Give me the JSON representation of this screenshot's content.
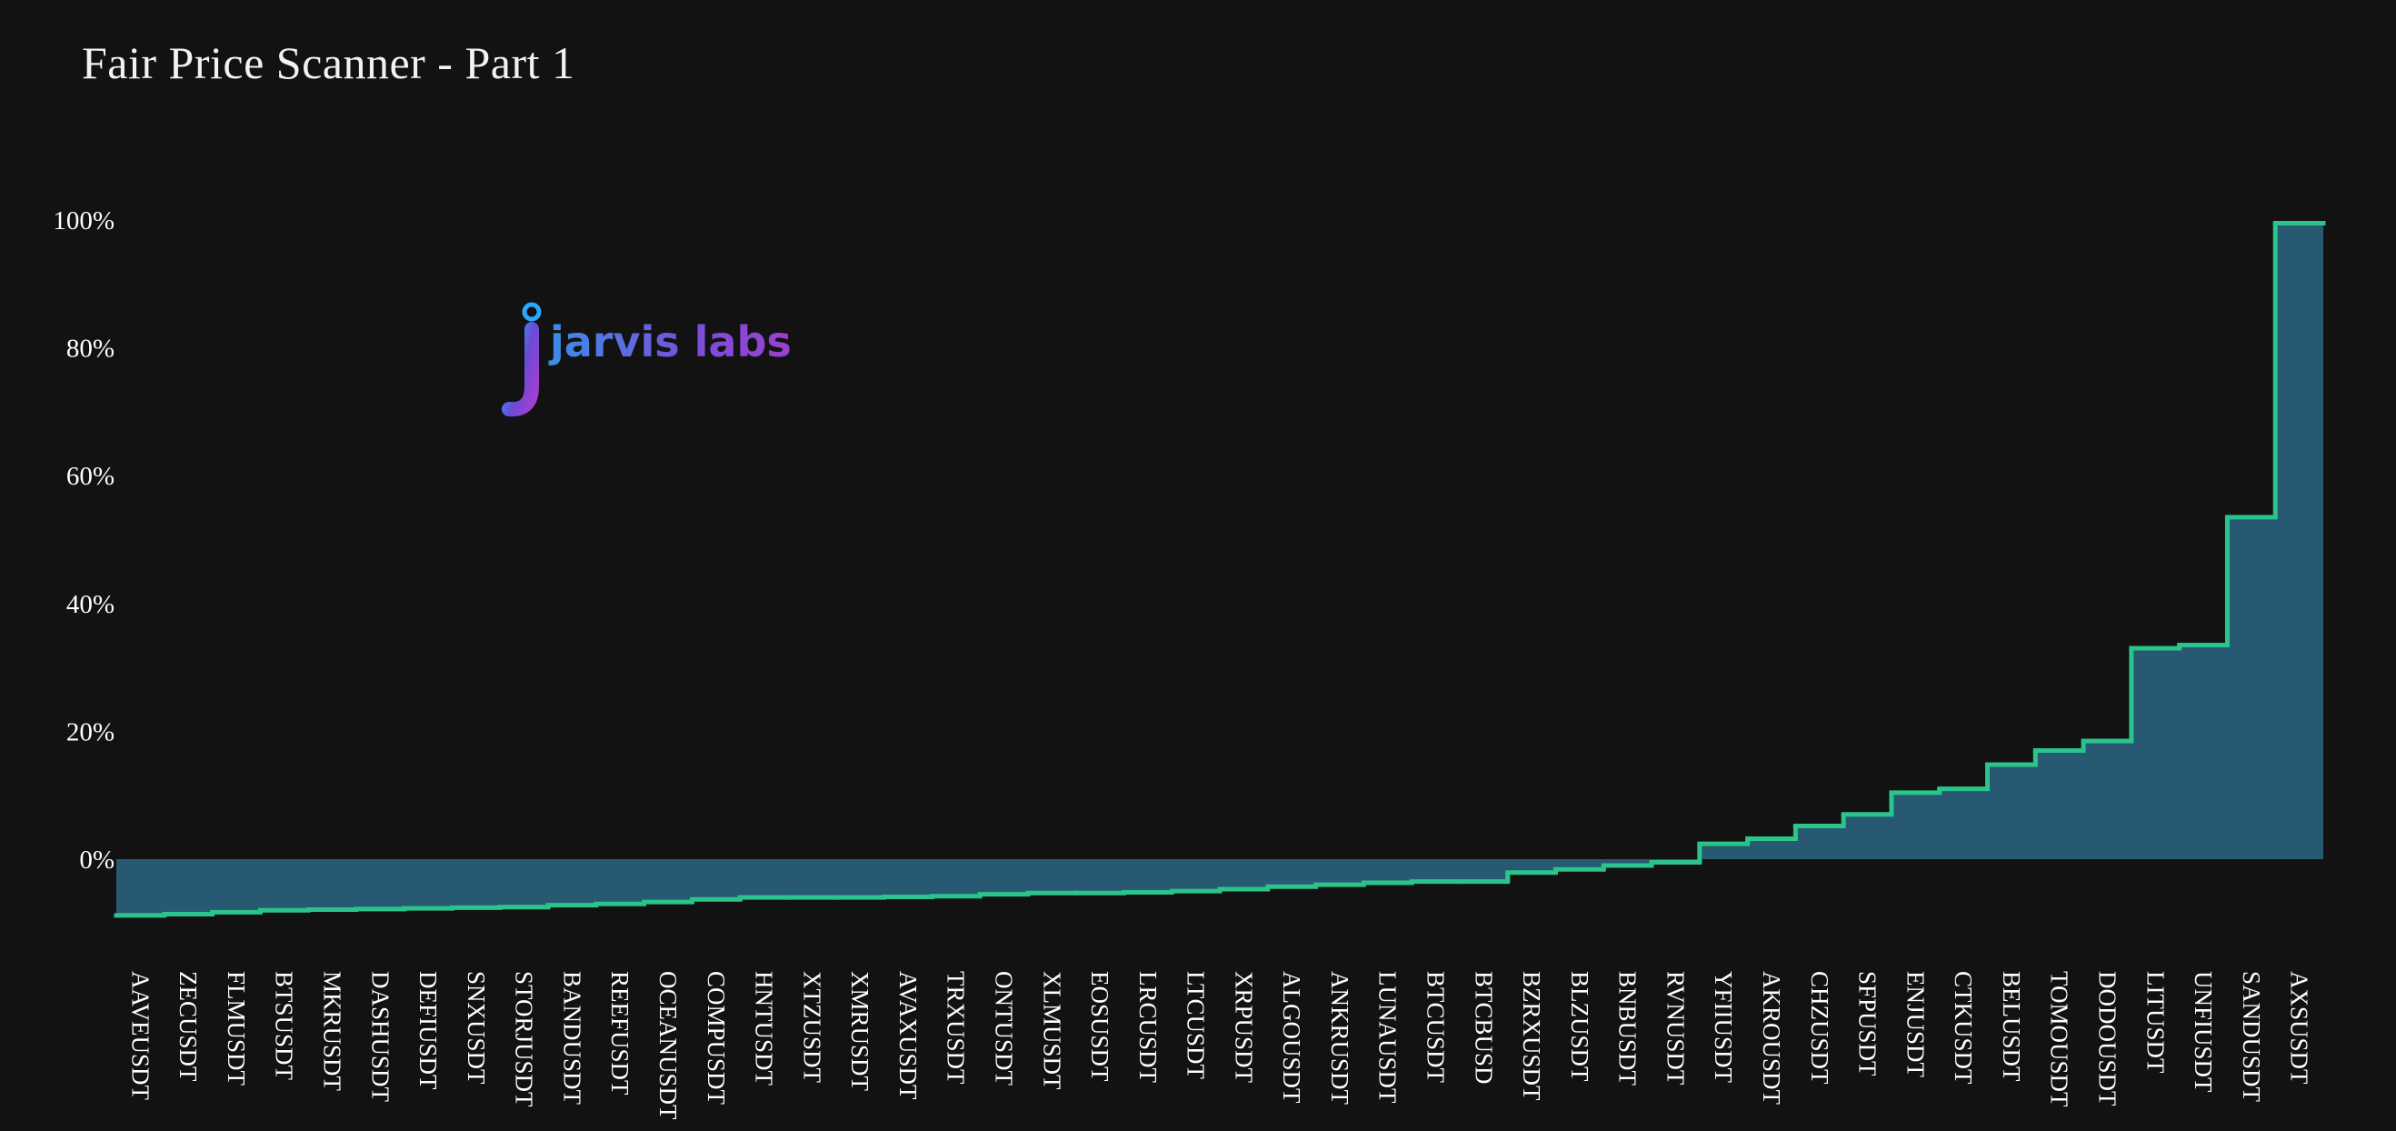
{
  "header": {
    "title": "Fair Price Scanner - Part 1"
  },
  "logo": {
    "text": "jarvis labs",
    "icon": "jarvis-labs-logo-icon"
  },
  "colors": {
    "background": "#121212",
    "area_fill": "#2a5e78",
    "line": "#2bc48a",
    "text": "#ffffff"
  },
  "chart_data": {
    "type": "area",
    "line_shape": "step",
    "title": "Fair Price Scanner - Part 1",
    "xlabel": "",
    "ylabel": "",
    "ylim": [
      -15,
      110
    ],
    "yticks": [
      0,
      20,
      40,
      60,
      80,
      100
    ],
    "ytick_labels": [
      "0%",
      "20%",
      "40%",
      "60%",
      "80%",
      "100%"
    ],
    "grid": false,
    "categories": [
      "AAVEUSDT",
      "ZECUSDT",
      "FLMUSDT",
      "BTSUSDT",
      "MKRUSDT",
      "DASHUSDT",
      "DEFIUSDT",
      "SNXUSDT",
      "STORJUSDT",
      "BANDUSDT",
      "REEFUSDT",
      "OCEANUSDT",
      "COMPUSDT",
      "HNTUSDT",
      "XTZUSDT",
      "XMRUSDT",
      "AVAXUSDT",
      "TRXUSDT",
      "ONTUSDT",
      "XLMUSDT",
      "EOSUSDT",
      "LRCUSDT",
      "LTCUSDT",
      "XRPUSDT",
      "ALGOUSDT",
      "ANKRUSDT",
      "LUNAUSDT",
      "BTCUSDT",
      "BTCBUSD",
      "BZRXUSDT",
      "BLZUSDT",
      "BNBUSDT",
      "RVNUSDT",
      "YFIIUSDT",
      "AKROUSDT",
      "CHZUSDT",
      "SFPUSDT",
      "ENJUSDT",
      "CTKUSDT",
      "BELUSDT",
      "TOMOUSDT",
      "DODOUSDT",
      "LITUSDT",
      "UNFIUSDT",
      "SANDUSDT",
      "AXSUSDT"
    ],
    "values": [
      -8.8,
      -8.6,
      -8.3,
      -8.0,
      -7.9,
      -7.8,
      -7.7,
      -7.6,
      -7.5,
      -7.2,
      -7.0,
      -6.7,
      -6.3,
      -6.0,
      -6.0,
      -6.0,
      -5.9,
      -5.8,
      -5.5,
      -5.3,
      -5.3,
      -5.2,
      -5.0,
      -4.7,
      -4.3,
      -4.0,
      -3.7,
      -3.5,
      -3.5,
      -2.1,
      -1.6,
      -1.0,
      -0.5,
      2.4,
      3.2,
      5.2,
      7.0,
      10.4,
      11.0,
      14.8,
      17.0,
      18.5,
      33.0,
      33.5,
      53.5,
      99.5
    ]
  }
}
